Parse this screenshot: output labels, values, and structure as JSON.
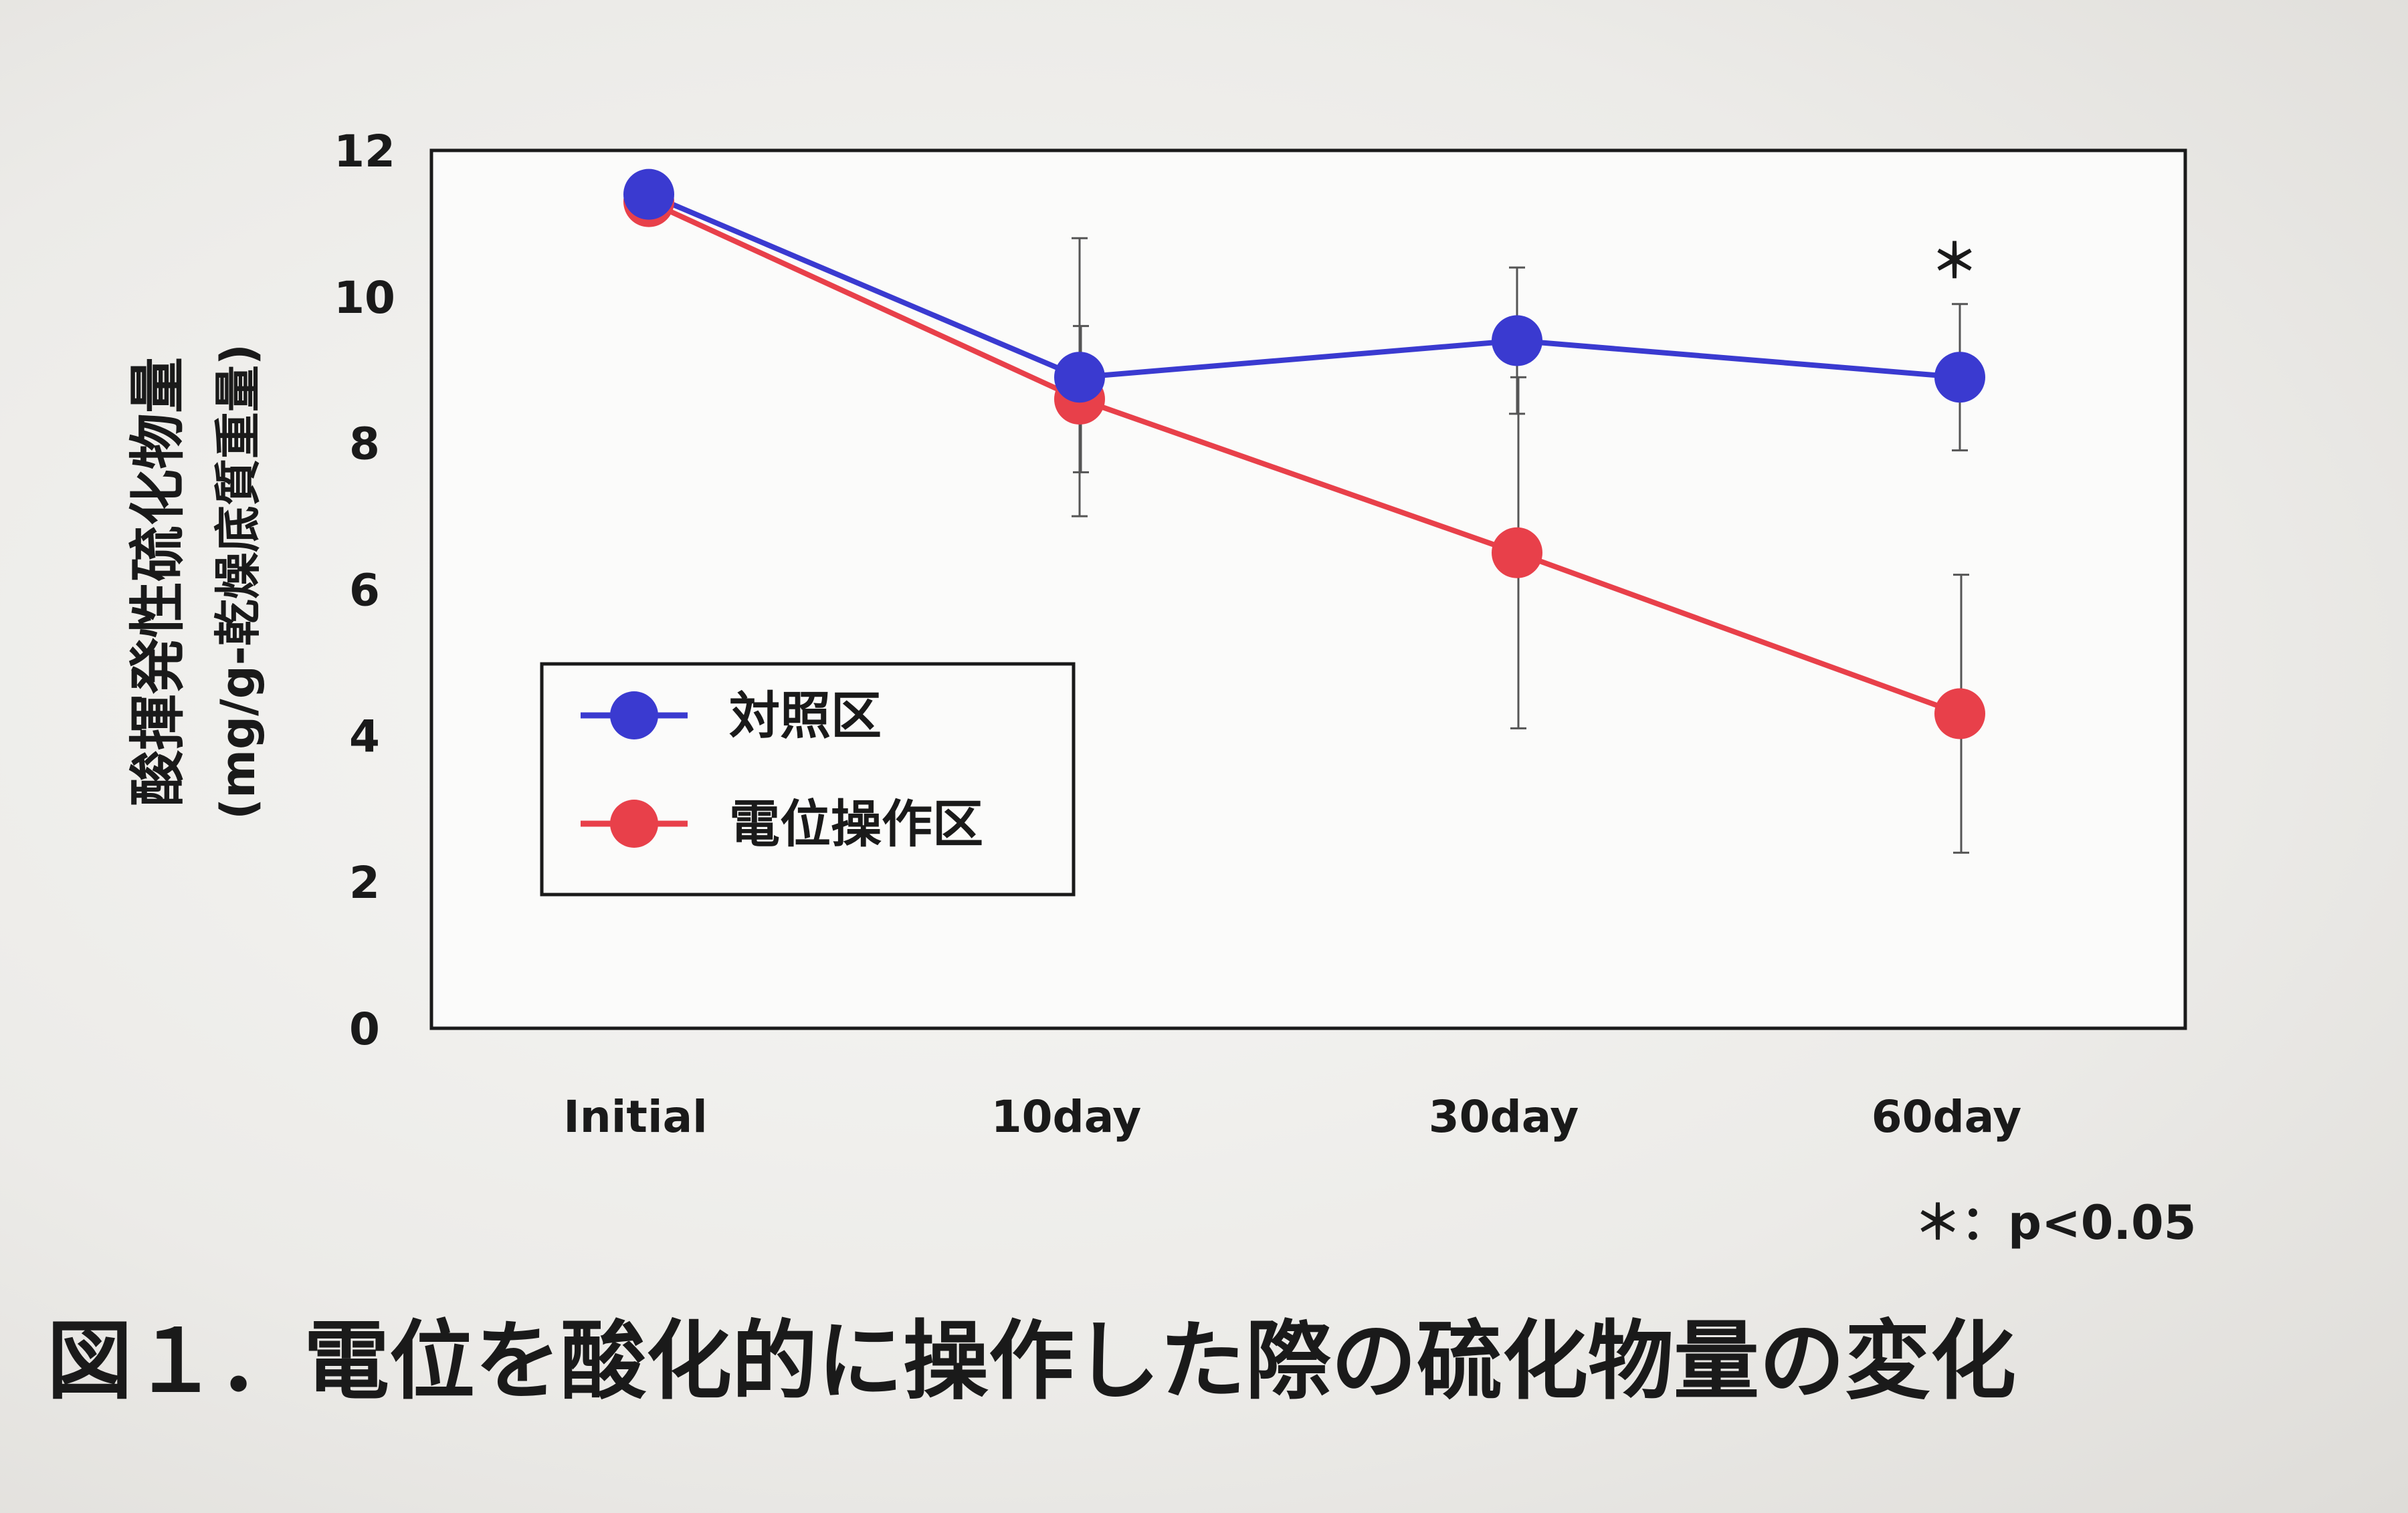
{
  "chart_data": {
    "type": "line",
    "categories": [
      "Initial",
      "10day",
      "30day",
      "60day"
    ],
    "ylabel_line1": "酸揮発性硫化物量",
    "ylabel_line2": "(mg/g-乾燥底質重量)",
    "ylim": [
      0,
      12
    ],
    "yticks": [
      "0",
      "2",
      "4",
      "6",
      "8",
      "10",
      "12"
    ],
    "grid": false,
    "legend_position": "center-left",
    "series": [
      {
        "name": "対照区",
        "color": "#3a3ad0",
        "values": [
          11.4,
          8.9,
          9.4,
          8.9
        ],
        "error": [
          0,
          1.9,
          1.0,
          1.0
        ]
      },
      {
        "name": "電位操作区",
        "color": "#e8404a",
        "values": [
          11.3,
          8.6,
          6.5,
          4.3
        ],
        "error": [
          0,
          1.0,
          2.4,
          1.9
        ]
      }
    ],
    "significance_marker": "＊",
    "significance_category": "60day",
    "significance_note": "＊：p<0.05",
    "caption": "図１．電位を酸化的に操作した際の硫化物量の変化"
  }
}
